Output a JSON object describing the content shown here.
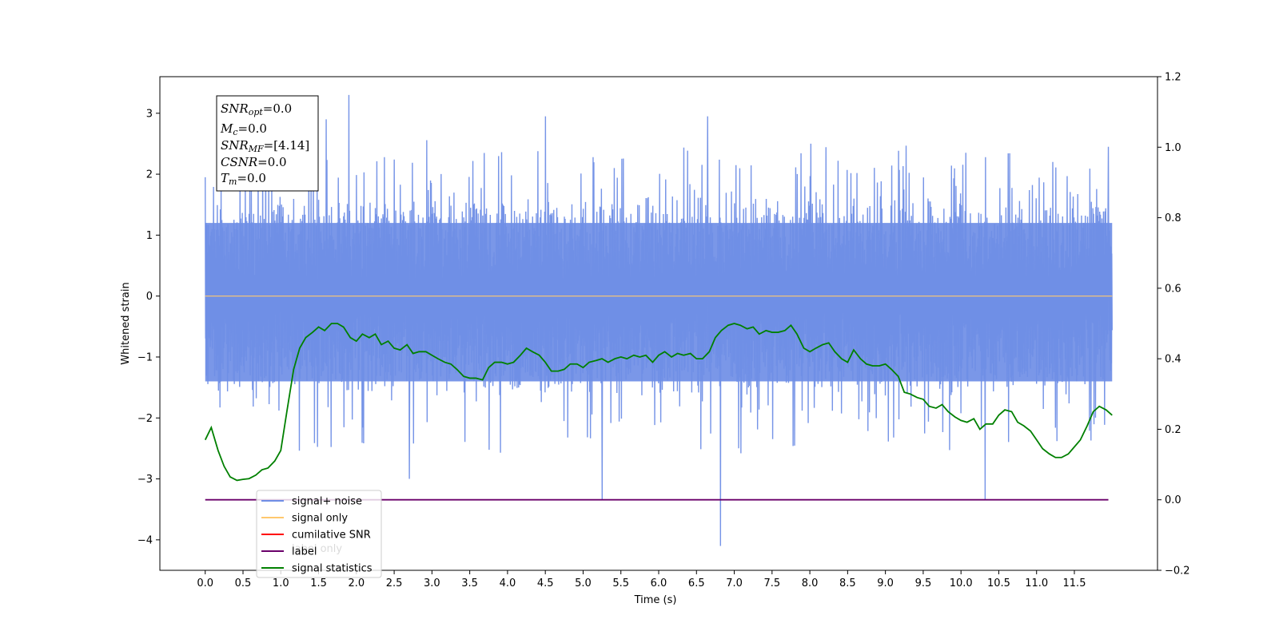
{
  "chart_data": {
    "type": "line",
    "xlabel": "Time (s)",
    "ylabel": "Whitened strain",
    "xlim": [
      -0.6,
      12.6
    ],
    "ylim": [
      -4.5,
      3.6
    ],
    "y2lim": [
      -0.2,
      1.2
    ],
    "x_ticks": [
      "0.0",
      "0.5",
      "1.0",
      "1.5",
      "2.0",
      "2.5",
      "3.0",
      "3.5",
      "4.0",
      "4.5",
      "5.0",
      "5.5",
      "6.0",
      "6.5",
      "7.0",
      "7.5",
      "8.0",
      "8.5",
      "9.0",
      "9.5",
      "10.0",
      "10.5",
      "11.0",
      "11.5"
    ],
    "y_ticks": [
      "3",
      "2",
      "1",
      "0",
      "−1",
      "−2",
      "−3",
      "−4"
    ],
    "y2_ticks": [
      "1.2",
      "1.0",
      "0.8",
      "0.6",
      "0.4",
      "0.2",
      "0.0",
      "−0.2"
    ],
    "annotation": {
      "lines": [
        {
          "main": "SNR",
          "sub": "opt",
          "value": "=0.0"
        },
        {
          "main": "M",
          "sub": "c",
          "value": "=0.0"
        },
        {
          "main": "SNR",
          "sub": "MF",
          "value": "=[4.14]"
        },
        {
          "main": "CSNR",
          "sub": "",
          "value": "=0.0"
        },
        {
          "main": "T",
          "sub": "m",
          "value": "=0.0"
        }
      ]
    },
    "legend": {
      "placement": "lower-left",
      "entries": [
        {
          "label": "signal+ noise",
          "color": "#6f8ee6"
        },
        {
          "label": "signal only",
          "color": "#ffc86e"
        },
        {
          "label": "cumilative SNR",
          "color": "#ff0000"
        },
        {
          "label": "label",
          "color": "#6a006a"
        },
        {
          "label": "signal statistics",
          "color": "#008000"
        }
      ],
      "hidden_overlap_text": "label only"
    },
    "series": [
      {
        "name": "signal+ noise",
        "axis": "left",
        "color": "#6f8ee6",
        "x_range": [
          0.0,
          12.0
        ],
        "band_upper": 1.2,
        "band_lower": -1.4,
        "spikes": [
          {
            "x": 1.9,
            "y": 3.3
          },
          {
            "x": 1.6,
            "y": 2.9
          },
          {
            "x": 4.5,
            "y": 2.95
          },
          {
            "x": 6.65,
            "y": 2.95
          },
          {
            "x": 5.25,
            "y": -3.35
          },
          {
            "x": 6.82,
            "y": -4.1
          },
          {
            "x": 10.32,
            "y": -3.35
          },
          {
            "x": 2.7,
            "y": -3.0
          },
          {
            "x": 11.95,
            "y": 2.45
          },
          {
            "x": 0.0,
            "y": 1.95
          }
        ]
      },
      {
        "name": "signal only",
        "axis": "left",
        "color": "#ffc86e",
        "points": [
          [
            0.0,
            0.0
          ],
          [
            12.0,
            0.0
          ]
        ]
      },
      {
        "name": "label",
        "axis": "right",
        "color": "#6a006a",
        "points": [
          [
            0.0,
            0.0
          ],
          [
            11.95,
            0.0
          ]
        ]
      },
      {
        "name": "signal statistics",
        "axis": "right",
        "color": "#008000",
        "points": [
          [
            0.0,
            0.17
          ],
          [
            0.08,
            0.205
          ],
          [
            0.17,
            0.14
          ],
          [
            0.25,
            0.095
          ],
          [
            0.33,
            0.065
          ],
          [
            0.42,
            0.055
          ],
          [
            0.5,
            0.058
          ],
          [
            0.58,
            0.06
          ],
          [
            0.67,
            0.07
          ],
          [
            0.75,
            0.085
          ],
          [
            0.83,
            0.09
          ],
          [
            0.92,
            0.11
          ],
          [
            1.0,
            0.14
          ],
          [
            1.08,
            0.25
          ],
          [
            1.17,
            0.37
          ],
          [
            1.25,
            0.43
          ],
          [
            1.33,
            0.46
          ],
          [
            1.42,
            0.475
          ],
          [
            1.5,
            0.49
          ],
          [
            1.58,
            0.48
          ],
          [
            1.67,
            0.5
          ],
          [
            1.75,
            0.5
          ],
          [
            1.83,
            0.49
          ],
          [
            1.92,
            0.46
          ],
          [
            2.0,
            0.45
          ],
          [
            2.08,
            0.47
          ],
          [
            2.17,
            0.46
          ],
          [
            2.25,
            0.47
          ],
          [
            2.33,
            0.44
          ],
          [
            2.42,
            0.45
          ],
          [
            2.5,
            0.43
          ],
          [
            2.58,
            0.425
          ],
          [
            2.67,
            0.44
          ],
          [
            2.75,
            0.415
          ],
          [
            2.83,
            0.42
          ],
          [
            2.92,
            0.42
          ],
          [
            3.0,
            0.41
          ],
          [
            3.08,
            0.4
          ],
          [
            3.17,
            0.39
          ],
          [
            3.25,
            0.385
          ],
          [
            3.33,
            0.37
          ],
          [
            3.42,
            0.35
          ],
          [
            3.5,
            0.345
          ],
          [
            3.58,
            0.345
          ],
          [
            3.67,
            0.34
          ],
          [
            3.75,
            0.375
          ],
          [
            3.83,
            0.39
          ],
          [
            3.92,
            0.39
          ],
          [
            4.0,
            0.385
          ],
          [
            4.08,
            0.39
          ],
          [
            4.17,
            0.41
          ],
          [
            4.25,
            0.43
          ],
          [
            4.33,
            0.42
          ],
          [
            4.42,
            0.41
          ],
          [
            4.5,
            0.39
          ],
          [
            4.58,
            0.365
          ],
          [
            4.67,
            0.365
          ],
          [
            4.75,
            0.37
          ],
          [
            4.83,
            0.385
          ],
          [
            4.92,
            0.385
          ],
          [
            5.0,
            0.375
          ],
          [
            5.08,
            0.39
          ],
          [
            5.17,
            0.395
          ],
          [
            5.25,
            0.4
          ],
          [
            5.33,
            0.39
          ],
          [
            5.42,
            0.4
          ],
          [
            5.5,
            0.405
          ],
          [
            5.58,
            0.4
          ],
          [
            5.67,
            0.41
          ],
          [
            5.75,
            0.405
          ],
          [
            5.83,
            0.41
          ],
          [
            5.92,
            0.39
          ],
          [
            6.0,
            0.41
          ],
          [
            6.08,
            0.42
          ],
          [
            6.17,
            0.405
          ],
          [
            6.25,
            0.415
          ],
          [
            6.33,
            0.41
          ],
          [
            6.42,
            0.415
          ],
          [
            6.5,
            0.4
          ],
          [
            6.58,
            0.4
          ],
          [
            6.67,
            0.42
          ],
          [
            6.75,
            0.46
          ],
          [
            6.83,
            0.48
          ],
          [
            6.92,
            0.495
          ],
          [
            7.0,
            0.5
          ],
          [
            7.08,
            0.495
          ],
          [
            7.17,
            0.485
          ],
          [
            7.25,
            0.49
          ],
          [
            7.33,
            0.47
          ],
          [
            7.42,
            0.48
          ],
          [
            7.5,
            0.475
          ],
          [
            7.58,
            0.475
          ],
          [
            7.67,
            0.48
          ],
          [
            7.75,
            0.495
          ],
          [
            7.83,
            0.47
          ],
          [
            7.92,
            0.43
          ],
          [
            8.0,
            0.42
          ],
          [
            8.08,
            0.43
          ],
          [
            8.17,
            0.44
          ],
          [
            8.25,
            0.445
          ],
          [
            8.33,
            0.42
          ],
          [
            8.42,
            0.4
          ],
          [
            8.5,
            0.39
          ],
          [
            8.58,
            0.425
          ],
          [
            8.67,
            0.4
          ],
          [
            8.75,
            0.385
          ],
          [
            8.83,
            0.38
          ],
          [
            8.92,
            0.38
          ],
          [
            9.0,
            0.385
          ],
          [
            9.08,
            0.37
          ],
          [
            9.17,
            0.35
          ],
          [
            9.25,
            0.305
          ],
          [
            9.33,
            0.3
          ],
          [
            9.42,
            0.29
          ],
          [
            9.5,
            0.285
          ],
          [
            9.58,
            0.265
          ],
          [
            9.67,
            0.26
          ],
          [
            9.75,
            0.27
          ],
          [
            9.83,
            0.25
          ],
          [
            9.92,
            0.235
          ],
          [
            10.0,
            0.225
          ],
          [
            10.08,
            0.22
          ],
          [
            10.17,
            0.23
          ],
          [
            10.25,
            0.2
          ],
          [
            10.33,
            0.215
          ],
          [
            10.42,
            0.215
          ],
          [
            10.5,
            0.24
          ],
          [
            10.58,
            0.255
          ],
          [
            10.67,
            0.25
          ],
          [
            10.75,
            0.22
          ],
          [
            10.83,
            0.21
          ],
          [
            10.92,
            0.195
          ],
          [
            11.0,
            0.17
          ],
          [
            11.08,
            0.145
          ],
          [
            11.17,
            0.13
          ],
          [
            11.25,
            0.12
          ],
          [
            11.33,
            0.12
          ],
          [
            11.42,
            0.13
          ],
          [
            11.5,
            0.15
          ],
          [
            11.58,
            0.17
          ],
          [
            11.67,
            0.21
          ],
          [
            11.75,
            0.25
          ],
          [
            11.83,
            0.265
          ],
          [
            11.92,
            0.255
          ],
          [
            12.0,
            0.24
          ]
        ]
      }
    ]
  }
}
